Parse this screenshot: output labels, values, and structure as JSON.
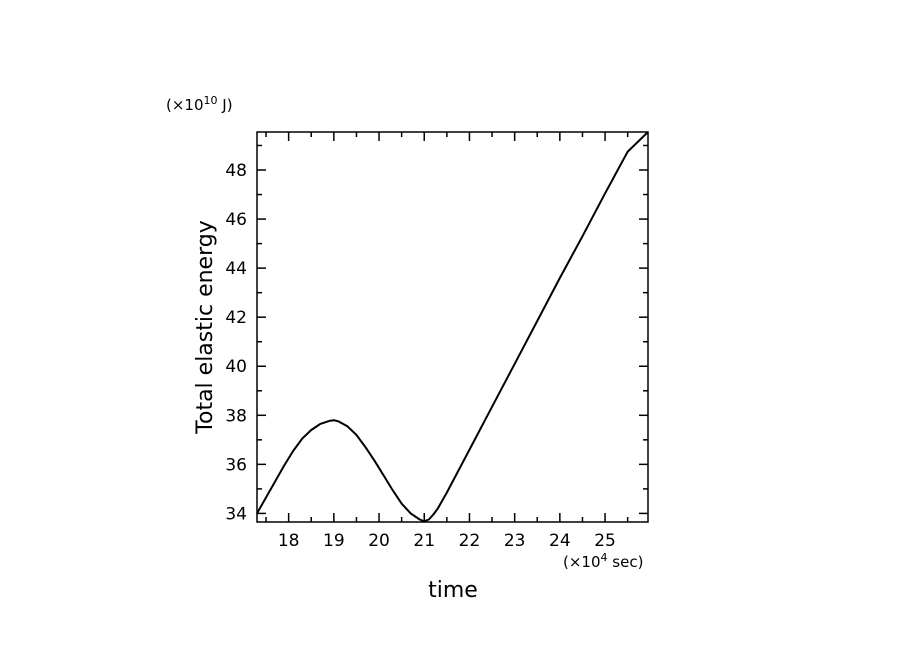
{
  "chart_data": {
    "type": "line",
    "title": "",
    "xlabel": "time",
    "ylabel": "Total elastic energy",
    "x_unit": {
      "prefix": "(×10",
      "exponent": "4",
      "suffix": " sec)"
    },
    "y_unit": {
      "prefix": "(×10",
      "exponent": "10",
      "suffix": " J)"
    },
    "xlim": [
      17.3,
      25.95
    ],
    "ylim": [
      33.65,
      49.55
    ],
    "x_ticks": [
      18,
      19,
      20,
      21,
      22,
      23,
      24,
      25
    ],
    "y_ticks": [
      34,
      36,
      38,
      40,
      42,
      44,
      46,
      48
    ],
    "x_minor_step": 0.5,
    "y_minor_step": 1,
    "grid": false,
    "legend": "none",
    "line_color": "#000000",
    "series": [
      {
        "x": [
          17.3,
          17.5,
          17.7,
          17.9,
          18.1,
          18.3,
          18.5,
          18.7,
          18.9,
          19.0,
          19.1,
          19.3,
          19.5,
          19.7,
          19.9,
          20.1,
          20.3,
          20.5,
          20.7,
          20.9,
          21.0,
          21.1,
          21.2,
          21.3,
          21.5,
          21.7,
          22.0,
          22.5,
          23.0,
          23.5,
          24.0,
          24.5,
          25.0,
          25.5,
          25.95
        ],
        "values": [
          34.0,
          34.65,
          35.3,
          35.95,
          36.55,
          37.05,
          37.4,
          37.65,
          37.77,
          37.8,
          37.75,
          37.55,
          37.2,
          36.7,
          36.15,
          35.55,
          34.95,
          34.4,
          34.0,
          33.75,
          33.68,
          33.75,
          33.95,
          34.2,
          34.85,
          35.55,
          36.6,
          38.35,
          40.1,
          41.85,
          43.6,
          45.3,
          47.05,
          48.75,
          49.55
        ]
      }
    ]
  }
}
